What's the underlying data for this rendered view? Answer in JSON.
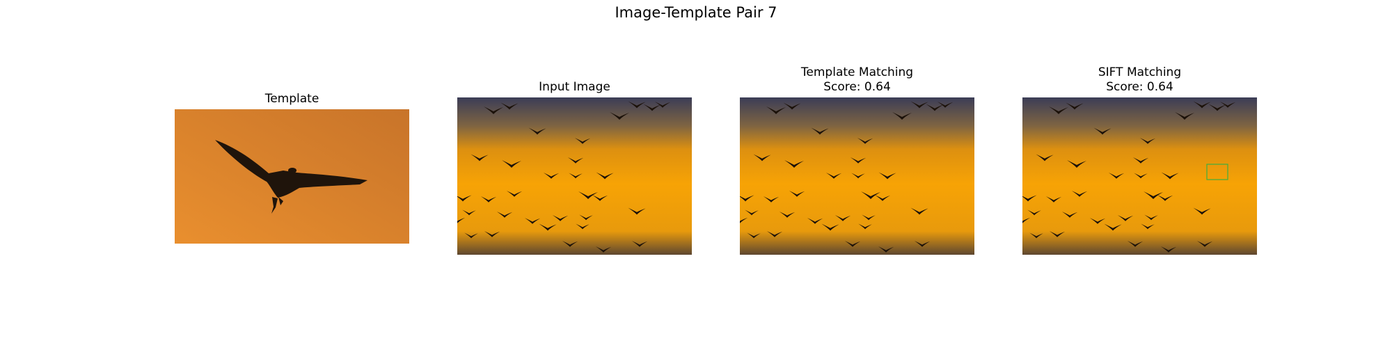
{
  "figure": {
    "title": "Image-Template Pair 7"
  },
  "panels": [
    {
      "title_lines": [
        "Template"
      ]
    },
    {
      "title_lines": [
        "Input Image"
      ]
    },
    {
      "title_lines": [
        "Template Matching",
        "Score: 0.64"
      ]
    },
    {
      "title_lines": [
        "SIFT Matching",
        "Score: 0.64"
      ]
    }
  ],
  "colors": {
    "sky_top": "#3a3d57",
    "sky_mid": "#f59a05",
    "sky_bottom": "#57432a",
    "template_bg": "#d27a2a",
    "bird": "#1b1109",
    "match_box": "#3fae3f"
  }
}
